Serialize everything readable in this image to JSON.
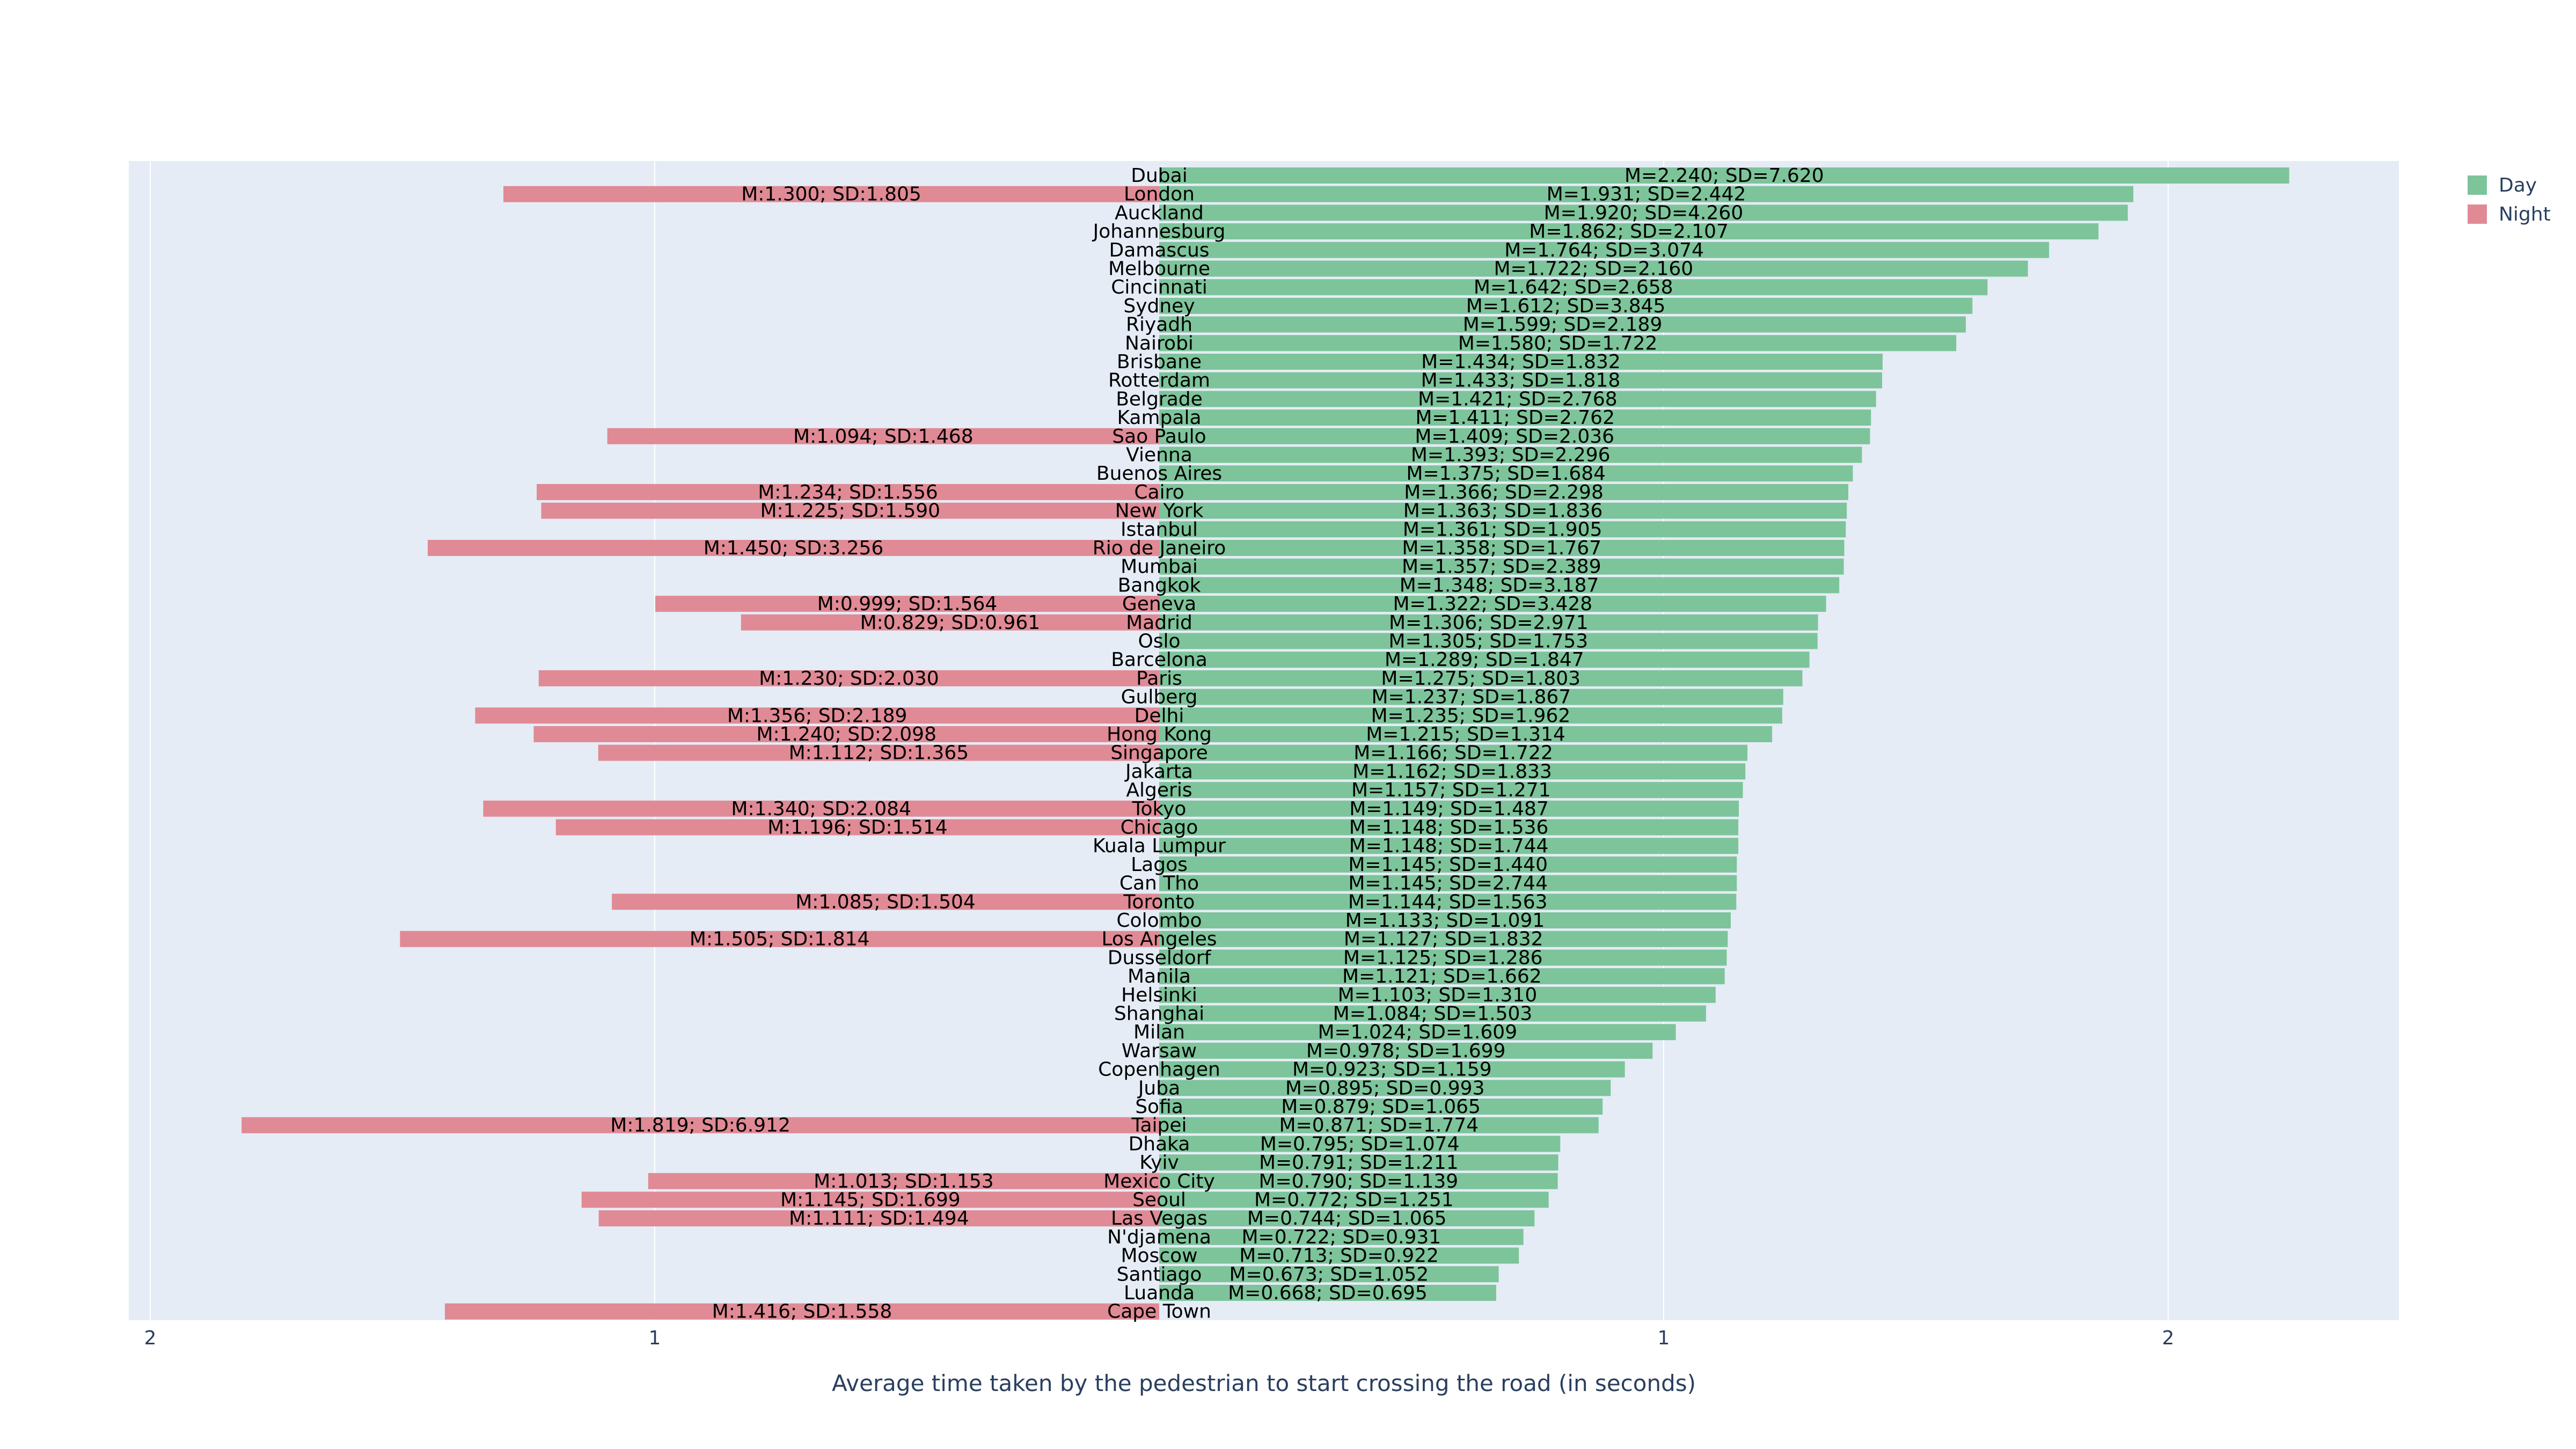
{
  "chart_data": {
    "type": "bar",
    "orientation": "horizontal",
    "layout": "diverging",
    "xlabel": "Average time taken by the pedestrian to start crossing the road (in seconds)",
    "x_ticks": [
      {
        "label": "2",
        "value": -2
      },
      {
        "label": "1",
        "value": -1
      },
      {
        "label": "1",
        "value": 1
      },
      {
        "label": "2",
        "value": 2
      }
    ],
    "xlim": [
      -2.5,
      2.5
    ],
    "grid": true,
    "legend_position": "top-right",
    "categories": [
      "Dubai",
      "London",
      "Auckland",
      "Johannesburg",
      "Damascus",
      "Melbourne",
      "Cincinnati",
      "Sydney",
      "Riyadh",
      "Nairobi",
      "Brisbane",
      "Rotterdam",
      "Belgrade",
      "Kampala",
      "Sao Paulo",
      "Vienna",
      "Buenos Aires",
      "Cairo",
      "New York",
      "Istanbul",
      "Rio de Janeiro",
      "Mumbai",
      "Bangkok",
      "Geneva",
      "Madrid",
      "Oslo",
      "Barcelona",
      "Paris",
      "Gulberg",
      "Delhi",
      "Hong Kong",
      "Singapore",
      "Jakarta",
      "Algeris",
      "Tokyo",
      "Chicago",
      "Kuala Lumpur",
      "Lagos",
      "Can Tho",
      "Toronto",
      "Colombo",
      "Los Angeles",
      "Dusseldorf",
      "Manila",
      "Helsinki",
      "Shanghai",
      "Milan",
      "Warsaw",
      "Copenhagen",
      "Juba",
      "Sofia",
      "Taipei",
      "Dhaka",
      "Kyiv",
      "Mexico City",
      "Seoul",
      "Las Vegas",
      "N'djamena",
      "Moscow",
      "Santiago",
      "Luanda",
      "Cape Town"
    ],
    "series": [
      {
        "name": "Day",
        "color": "#7dc49a",
        "direction": "right",
        "values": [
          2.24,
          1.931,
          1.92,
          1.862,
          1.764,
          1.722,
          1.642,
          1.612,
          1.599,
          1.58,
          1.434,
          1.433,
          1.421,
          1.411,
          1.409,
          1.393,
          1.375,
          1.366,
          1.363,
          1.361,
          1.358,
          1.357,
          1.348,
          1.322,
          1.306,
          1.305,
          1.289,
          1.275,
          1.237,
          1.235,
          1.215,
          1.166,
          1.162,
          1.157,
          1.149,
          1.148,
          1.148,
          1.145,
          1.145,
          1.144,
          1.133,
          1.127,
          1.125,
          1.121,
          1.103,
          1.084,
          1.024,
          0.978,
          0.923,
          0.895,
          0.879,
          0.871,
          0.795,
          0.791,
          0.79,
          0.772,
          0.744,
          0.722,
          0.713,
          0.673,
          0.668,
          null
        ],
        "labels": [
          "M=2.240; SD=7.620",
          "M=1.931; SD=2.442",
          "M=1.920; SD=4.260",
          "M=1.862; SD=2.107",
          "M=1.764; SD=3.074",
          "M=1.722; SD=2.160",
          "M=1.642; SD=2.658",
          "M=1.612; SD=3.845",
          "M=1.599; SD=2.189",
          "M=1.580; SD=1.722",
          "M=1.434; SD=1.832",
          "M=1.433; SD=1.818",
          "M=1.421; SD=2.768",
          "M=1.411; SD=2.762",
          "M=1.409; SD=2.036",
          "M=1.393; SD=2.296",
          "M=1.375; SD=1.684",
          "M=1.366; SD=2.298",
          "M=1.363; SD=1.836",
          "M=1.361; SD=1.905",
          "M=1.358; SD=1.767",
          "M=1.357; SD=2.389",
          "M=1.348; SD=3.187",
          "M=1.322; SD=3.428",
          "M=1.306; SD=2.971",
          "M=1.305; SD=1.753",
          "M=1.289; SD=1.847",
          "M=1.275; SD=1.803",
          "M=1.237; SD=1.867",
          "M=1.235; SD=1.962",
          "M=1.215; SD=1.314",
          "M=1.166; SD=1.722",
          "M=1.162; SD=1.833",
          "M=1.157; SD=1.271",
          "M=1.149; SD=1.487",
          "M=1.148; SD=1.536",
          "M=1.148; SD=1.744",
          "M=1.145; SD=1.440",
          "M=1.145; SD=2.744",
          "M=1.144; SD=1.563",
          "M=1.133; SD=1.091",
          "M=1.127; SD=1.832",
          "M=1.125; SD=1.286",
          "M=1.121; SD=1.662",
          "M=1.103; SD=1.310",
          "M=1.084; SD=1.503",
          "M=1.024; SD=1.609",
          "M=0.978; SD=1.699",
          "M=0.923; SD=1.159",
          "M=0.895; SD=0.993",
          "M=0.879; SD=1.065",
          "M=0.871; SD=1.774",
          "M=0.795; SD=1.074",
          "M=0.791; SD=1.211",
          "M=0.790; SD=1.139",
          "M=0.772; SD=1.251",
          "M=0.744; SD=1.065",
          "M=0.722; SD=0.931",
          "M=0.713; SD=0.922",
          "M=0.673; SD=1.052",
          "M=0.668; SD=0.695",
          null
        ]
      },
      {
        "name": "Night",
        "color": "#e08a95",
        "direction": "left",
        "values": [
          null,
          1.3,
          null,
          null,
          null,
          null,
          null,
          null,
          null,
          null,
          null,
          null,
          null,
          null,
          1.094,
          null,
          null,
          1.234,
          1.225,
          null,
          1.45,
          null,
          null,
          0.999,
          0.829,
          null,
          null,
          1.23,
          null,
          1.356,
          1.24,
          1.112,
          null,
          null,
          1.34,
          1.196,
          null,
          null,
          null,
          1.085,
          null,
          1.505,
          null,
          null,
          null,
          null,
          null,
          null,
          null,
          null,
          null,
          1.819,
          null,
          null,
          1.013,
          1.145,
          1.111,
          null,
          null,
          null,
          null,
          1.416
        ],
        "labels": [
          null,
          "M:1.300; SD:1.805",
          null,
          null,
          null,
          null,
          null,
          null,
          null,
          null,
          null,
          null,
          null,
          null,
          "M:1.094; SD:1.468",
          null,
          null,
          "M:1.234; SD:1.556",
          "M:1.225; SD:1.590",
          null,
          "M:1.450; SD:3.256",
          null,
          null,
          "M:0.999; SD:1.564",
          "M:0.829; SD:0.961",
          null,
          null,
          "M:1.230; SD:2.030",
          null,
          "M:1.356; SD:2.189",
          "M:1.240; SD:2.098",
          "M:1.112; SD:1.365",
          null,
          null,
          "M:1.340; SD:2.084",
          "M:1.196; SD:1.514",
          null,
          null,
          null,
          "M:1.085; SD:1.504",
          null,
          "M:1.505; SD:1.814",
          null,
          null,
          null,
          null,
          null,
          null,
          null,
          null,
          null,
          "M:1.819; SD:6.912",
          null,
          null,
          "M:1.013; SD:1.153",
          "M:1.145; SD:1.699",
          "M:1.111; SD:1.494",
          null,
          null,
          null,
          null,
          "M:1.416; SD:1.558"
        ]
      }
    ]
  },
  "legend": {
    "items": [
      {
        "label": "Day",
        "color": "#7dc49a"
      },
      {
        "label": "Night",
        "color": "#e08a95"
      }
    ]
  },
  "colors": {
    "plot_background": "#e5ecf6",
    "grid": "#ffffff",
    "axis_text": "#2a3f5f"
  }
}
